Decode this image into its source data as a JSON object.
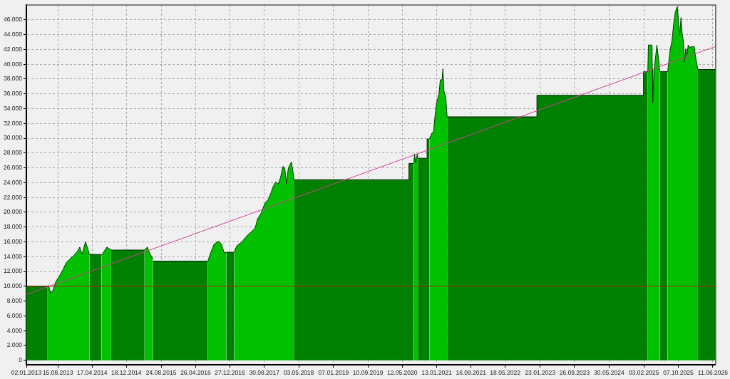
{
  "chart_data": {
    "type": "area",
    "xlim": [
      "2013-01-02",
      "2026-07-01"
    ],
    "xticks": [
      {
        "value": "2013-01-02",
        "label": "02.01.2013"
      },
      {
        "value": "2013-08-15",
        "label": "15.08.2013"
      },
      {
        "value": "2014-04-17",
        "label": "17.04.2014"
      },
      {
        "value": "2014-12-18",
        "label": "18.12.2014"
      },
      {
        "value": "2015-08-24",
        "label": "24.08.2015"
      },
      {
        "value": "2016-04-26",
        "label": "26.04.2016"
      },
      {
        "value": "2016-12-27",
        "label": "27.12.2016"
      },
      {
        "value": "2017-08-30",
        "label": "30.08.2017"
      },
      {
        "value": "2018-05-03",
        "label": "03.05.2018"
      },
      {
        "value": "2019-01-07",
        "label": "07.01.2019"
      },
      {
        "value": "2019-09-10",
        "label": "10.09.2019"
      },
      {
        "value": "2020-05-12",
        "label": "12.05.2020"
      },
      {
        "value": "2021-01-13",
        "label": "13.01.2021"
      },
      {
        "value": "2021-09-16",
        "label": "16.09.2021"
      },
      {
        "value": "2022-05-18",
        "label": "18.05.2022"
      },
      {
        "value": "2023-01-23",
        "label": "23.01.2023"
      },
      {
        "value": "2023-09-26",
        "label": "26.09.2023"
      },
      {
        "value": "2024-05-30",
        "label": "30.05.2024"
      },
      {
        "value": "2025-02-03",
        "label": "03.02.2025"
      },
      {
        "value": "2025-10-07",
        "label": "07.10.2025"
      },
      {
        "value": "2026-06-11",
        "label": "11.06.2026"
      }
    ],
    "ylim": [
      -600,
      48000
    ],
    "yticks": [
      0,
      {
        "value": 2000,
        "label": "2.000"
      },
      {
        "value": 4000,
        "label": "4.000"
      },
      {
        "value": 6000,
        "label": "6.000"
      },
      {
        "value": 8000,
        "label": "8.000"
      },
      {
        "value": 10000,
        "label": "10.000"
      },
      {
        "value": 12000,
        "label": "12.000"
      },
      {
        "value": 14000,
        "label": "14.000"
      },
      {
        "value": 16000,
        "label": "16.000"
      },
      {
        "value": 18000,
        "label": "18.000"
      },
      {
        "value": 20000,
        "label": "20.000"
      },
      {
        "value": 22000,
        "label": "22.000"
      },
      {
        "value": 24000,
        "label": "24.000"
      },
      {
        "value": 26000,
        "label": "26.000"
      },
      {
        "value": 28000,
        "label": "28.000"
      },
      {
        "value": 30000,
        "label": "30.000"
      },
      {
        "value": 32000,
        "label": "32.000"
      },
      {
        "value": 34000,
        "label": "34.000"
      },
      {
        "value": 36000,
        "label": "36.000"
      },
      {
        "value": 38000,
        "label": "38.000"
      },
      {
        "value": 40000,
        "label": "40.000"
      },
      {
        "value": 42000,
        "label": "42.000"
      },
      {
        "value": 44000,
        "label": "44.000"
      },
      {
        "value": 46000,
        "label": "46.000"
      }
    ],
    "grid": true,
    "series": [
      {
        "color": "#008000",
        "x": [
          "2013-01-02",
          "2013-05-30"
        ],
        "values": [
          10000,
          10000
        ]
      },
      {
        "color": "#008000",
        "x": [
          "2014-03-28",
          "2014-06-23"
        ],
        "values": [
          14300,
          14300
        ]
      },
      {
        "color": "#008000",
        "x": [
          "2014-08-31",
          "2015-04-27"
        ],
        "values": [
          14900,
          14900
        ]
      },
      {
        "color": "#008000",
        "x": [
          "2015-06-25",
          "2016-07-23"
        ],
        "values": [
          13400,
          13400
        ]
      },
      {
        "color": "#008000",
        "x": [
          "2016-12-01",
          "2017-01-27"
        ],
        "values": [
          14600,
          14600
        ]
      },
      {
        "color": "#008000",
        "x": [
          "2018-03-29",
          "2020-06-29",
          "2020-06-29",
          "2020-08-03"
        ],
        "values": [
          24400,
          24400,
          26600,
          26600
        ]
      },
      {
        "color": "#008000",
        "x": [
          "2020-09-01",
          "2020-11-06",
          "2020-11-06",
          "2020-11-22"
        ],
        "values": [
          27300,
          27300,
          29900,
          29900
        ]
      },
      {
        "color": "#008000",
        "x": [
          "2021-03-29",
          "2022-12-31",
          "2022-12-31",
          "2025-01-31",
          "2025-01-31",
          "2025-03-03"
        ],
        "values": [
          32900,
          32900,
          35800,
          35800,
          39000,
          39000
        ]
      },
      {
        "color": "#008000",
        "x": [
          "2025-05-27",
          "2025-07-23"
        ],
        "values": [
          39000,
          39000
        ]
      },
      {
        "color": "#008000",
        "x": [
          "2026-02-24",
          "2026-07-01"
        ],
        "values": [
          39300,
          39300
        ]
      },
      {
        "color": "#00c000",
        "x": [
          "2013-05-30",
          "2013-06-09",
          "2013-06-24",
          "2013-07-12",
          "2013-08-02",
          "2013-08-24",
          "2013-09-19",
          "2013-10-14",
          "2013-11-09",
          "2013-12-04",
          "2014-01-01",
          "2014-01-19",
          "2014-02-03",
          "2014-03-01",
          "2014-03-21",
          "2014-03-28"
        ],
        "values": [
          10000,
          10100,
          9100,
          9500,
          10700,
          11300,
          12200,
          13200,
          13700,
          14100,
          14700,
          15300,
          14300,
          16000,
          14800,
          14300
        ]
      },
      {
        "color": "#00c000",
        "x": [
          "2014-06-23",
          "2014-07-11",
          "2014-07-31",
          "2014-08-16",
          "2014-08-31"
        ],
        "values": [
          14200,
          14700,
          15300,
          15100,
          14900
        ]
      },
      {
        "color": "#00c000",
        "x": [
          "2015-04-27",
          "2015-05-17",
          "2015-06-02",
          "2015-06-25"
        ],
        "values": [
          14900,
          15300,
          14500,
          13700
        ]
      },
      {
        "color": "#00c000",
        "x": [
          "2016-07-23",
          "2016-08-11",
          "2016-09-05",
          "2016-10-07",
          "2016-10-27",
          "2016-11-17",
          "2016-12-01"
        ],
        "values": [
          13400,
          14500,
          15700,
          16100,
          15700,
          14500,
          14600
        ]
      },
      {
        "color": "#00c000",
        "x": [
          "2017-01-27",
          "2017-02-16",
          "2017-03-23",
          "2017-04-26",
          "2017-05-31",
          "2017-06-26",
          "2017-07-13",
          "2017-08-08",
          "2017-09-03",
          "2017-09-29",
          "2017-10-16",
          "2017-11-02",
          "2017-11-19",
          "2017-12-07",
          "2017-12-24",
          "2018-01-10",
          "2018-01-23",
          "2018-02-05",
          "2018-02-18",
          "2018-03-12",
          "2018-03-26",
          "2018-03-29"
        ],
        "values": [
          14700,
          15500,
          16000,
          16800,
          17400,
          17900,
          19100,
          19900,
          21200,
          21800,
          22600,
          23500,
          24100,
          23800,
          24700,
          26200,
          26000,
          23800,
          26000,
          26800,
          25100,
          24400
        ]
      },
      {
        "color": "#00c000",
        "x": [
          "2020-08-03",
          "2020-08-08",
          "2020-08-16",
          "2020-08-28",
          "2020-09-01"
        ],
        "values": [
          26600,
          27900,
          26700,
          27900,
          27300
        ]
      },
      {
        "color": "#00c000",
        "x": [
          "2020-11-22",
          "2020-12-10",
          "2020-12-22",
          "2021-01-01",
          "2021-01-13",
          "2021-01-31",
          "2021-02-08",
          "2021-02-21",
          "2021-02-27",
          "2021-03-06",
          "2021-03-19",
          "2021-03-29"
        ],
        "values": [
          29900,
          30700,
          30900,
          32900,
          34800,
          36100,
          37900,
          37900,
          39400,
          36400,
          35600,
          32900
        ]
      },
      {
        "color": "#00c000",
        "x": [
          "2025-03-03",
          "2025-03-07",
          "2025-04-02",
          "2025-04-04",
          "2025-04-07",
          "2025-04-16",
          "2025-04-28",
          "2025-05-07",
          "2025-05-15",
          "2025-05-27"
        ],
        "values": [
          39000,
          42600,
          42600,
          39300,
          34800,
          39000,
          41100,
          42600,
          41300,
          39000
        ]
      },
      {
        "color": "#00c000",
        "x": [
          "2025-07-23",
          "2025-08-09",
          "2025-08-23",
          "2025-09-04",
          "2025-09-16",
          "2025-09-30",
          "2025-10-09",
          "2025-10-17",
          "2025-10-26",
          "2025-11-04",
          "2025-11-12",
          "2025-11-21",
          "2025-11-29",
          "2025-12-08",
          "2025-12-17",
          "2025-12-25",
          "2026-01-29",
          "2026-02-07",
          "2026-02-24"
        ],
        "values": [
          39000,
          41900,
          43200,
          45500,
          47100,
          47800,
          45500,
          43900,
          46300,
          44100,
          43100,
          40300,
          42100,
          41300,
          42600,
          42300,
          42400,
          41000,
          39300
        ]
      },
      {
        "type": "line",
        "color": "#cc4499",
        "x": [
          "2013-01-02",
          "2026-07-01"
        ],
        "values": [
          8900,
          42400
        ]
      }
    ],
    "ref_lines": [
      {
        "axis": "y",
        "value": 10000,
        "color": "#993300"
      }
    ]
  }
}
